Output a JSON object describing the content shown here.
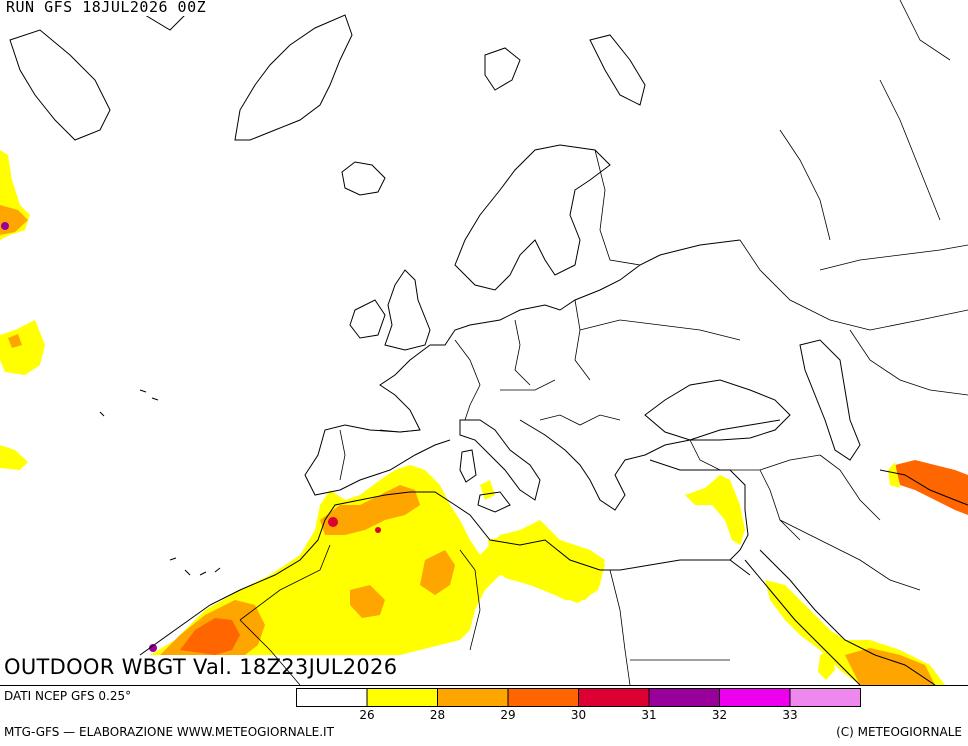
{
  "header": {
    "run_label": "RUN GFS 18JUL2026 00Z"
  },
  "map": {
    "title": "OUTDOOR WBGT Val. 18Z23JUL2026",
    "colors": {
      "land_border": "#000000",
      "background": "#ffffff"
    }
  },
  "footer": {
    "source": "DATI NCEP GFS 0.25°",
    "credits_left": "MTG-GFS — ELABORAZIONE WWW.METEOGIORNALE.IT",
    "credits_right": "(C) METEOGIORNALE"
  },
  "legend": {
    "bins": [
      {
        "color": "#ffffff",
        "upper": "26"
      },
      {
        "color": "#ffff00",
        "upper": "28"
      },
      {
        "color": "#ffa500",
        "upper": "29"
      },
      {
        "color": "#ff6600",
        "upper": "30"
      },
      {
        "color": "#dd0033",
        "upper": "31"
      },
      {
        "color": "#990099",
        "upper": "32"
      },
      {
        "color": "#ee00ee",
        "upper": "33"
      },
      {
        "color": "#ee88ee",
        "upper": ""
      }
    ]
  }
}
